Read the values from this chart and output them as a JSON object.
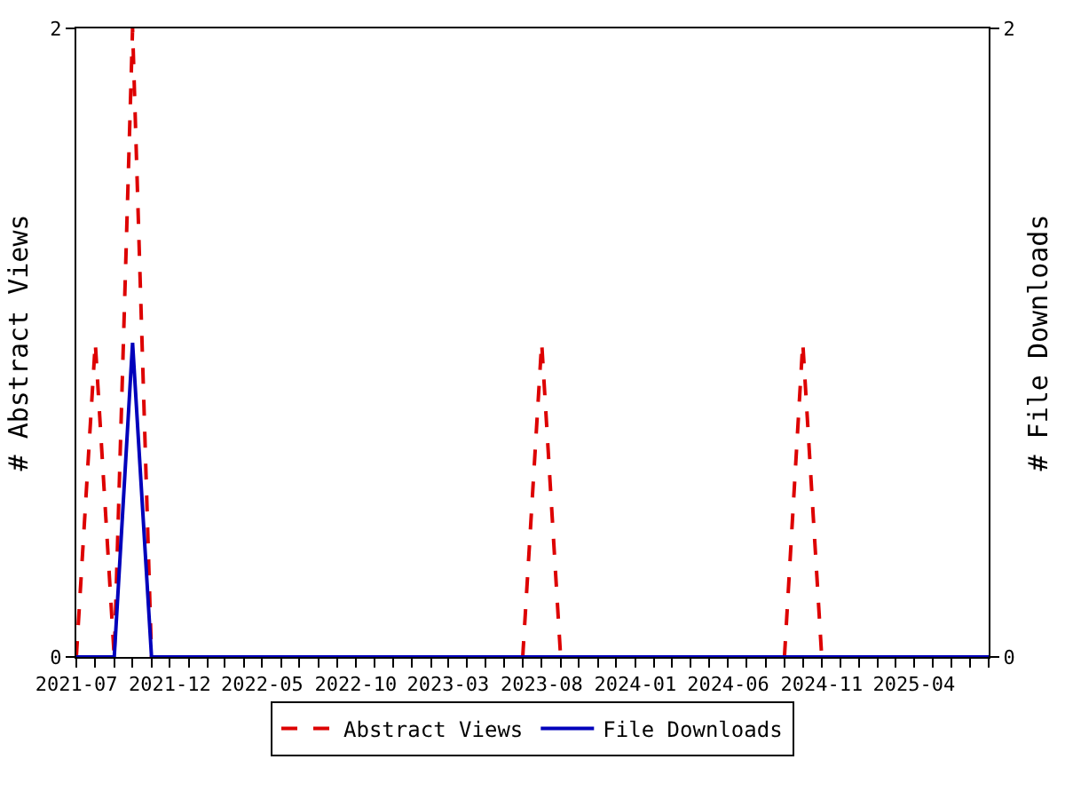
{
  "chart_data": {
    "type": "line",
    "x": [
      "2021-07",
      "2021-08",
      "2021-09",
      "2021-10",
      "2021-11",
      "2021-12",
      "2022-01",
      "2022-02",
      "2022-03",
      "2022-04",
      "2022-05",
      "2022-06",
      "2022-07",
      "2022-08",
      "2022-09",
      "2022-10",
      "2022-11",
      "2022-12",
      "2023-01",
      "2023-02",
      "2023-03",
      "2023-04",
      "2023-05",
      "2023-06",
      "2023-07",
      "2023-08",
      "2023-09",
      "2023-10",
      "2023-11",
      "2023-12",
      "2024-01",
      "2024-02",
      "2024-03",
      "2024-04",
      "2024-05",
      "2024-06",
      "2024-07",
      "2024-08",
      "2024-09",
      "2024-10",
      "2024-11",
      "2024-12",
      "2025-01",
      "2025-02",
      "2025-03",
      "2025-04",
      "2025-05",
      "2025-06",
      "2025-07",
      "2025-08"
    ],
    "series": [
      {
        "name": "Abstract Views",
        "color": "#dd0000",
        "line_style": "dashed",
        "values": [
          0,
          1,
          0,
          2,
          0,
          null,
          null,
          null,
          null,
          null,
          null,
          null,
          null,
          null,
          null,
          null,
          null,
          null,
          null,
          null,
          null,
          null,
          null,
          null,
          0,
          1,
          0,
          null,
          null,
          null,
          null,
          null,
          null,
          null,
          null,
          null,
          null,
          null,
          0,
          1,
          0,
          null,
          null,
          null,
          null,
          null,
          null,
          null,
          null,
          null
        ]
      },
      {
        "name": "File Downloads",
        "color": "#0000bb",
        "line_style": "solid",
        "axis": "y2",
        "values": [
          0,
          0,
          0,
          1,
          0,
          0,
          0,
          0,
          0,
          0,
          0,
          0,
          0,
          0,
          0,
          0,
          0,
          0,
          0,
          0,
          0,
          0,
          0,
          0,
          0,
          0,
          0,
          0,
          0,
          0,
          0,
          0,
          0,
          0,
          0,
          0,
          0,
          0,
          0,
          0,
          0,
          0,
          0,
          0,
          0,
          0,
          0,
          0,
          0,
          0
        ]
      }
    ],
    "ylabel": "# Abstract Views",
    "y2label": "# File Downloads",
    "xlim": [
      "2021-07",
      "2025-08"
    ],
    "xticks": [
      {
        "value": "2021-07",
        "label": "2021-07"
      },
      {
        "value": "2021-08",
        "label": null
      },
      {
        "value": "2021-09",
        "label": null
      },
      {
        "value": "2021-10",
        "label": null
      },
      {
        "value": "2021-11",
        "label": null
      },
      {
        "value": "2021-12",
        "label": "2021-12"
      },
      {
        "value": "2022-01",
        "label": null
      },
      {
        "value": "2022-02",
        "label": null
      },
      {
        "value": "2022-03",
        "label": null
      },
      {
        "value": "2022-04",
        "label": null
      },
      {
        "value": "2022-05",
        "label": "2022-05"
      },
      {
        "value": "2022-06",
        "label": null
      },
      {
        "value": "2022-07",
        "label": null
      },
      {
        "value": "2022-08",
        "label": null
      },
      {
        "value": "2022-09",
        "label": null
      },
      {
        "value": "2022-10",
        "label": "2022-10"
      },
      {
        "value": "2022-11",
        "label": null
      },
      {
        "value": "2022-12",
        "label": null
      },
      {
        "value": "2023-01",
        "label": null
      },
      {
        "value": "2023-02",
        "label": null
      },
      {
        "value": "2023-03",
        "label": "2023-03"
      },
      {
        "value": "2023-04",
        "label": null
      },
      {
        "value": "2023-05",
        "label": null
      },
      {
        "value": "2023-06",
        "label": null
      },
      {
        "value": "2023-07",
        "label": null
      },
      {
        "value": "2023-08",
        "label": "2023-08"
      },
      {
        "value": "2023-09",
        "label": null
      },
      {
        "value": "2023-10",
        "label": null
      },
      {
        "value": "2023-11",
        "label": null
      },
      {
        "value": "2023-12",
        "label": null
      },
      {
        "value": "2024-01",
        "label": "2024-01"
      },
      {
        "value": "2024-02",
        "label": null
      },
      {
        "value": "2024-03",
        "label": null
      },
      {
        "value": "2024-04",
        "label": null
      },
      {
        "value": "2024-05",
        "label": null
      },
      {
        "value": "2024-06",
        "label": "2024-06"
      },
      {
        "value": "2024-07",
        "label": null
      },
      {
        "value": "2024-08",
        "label": null
      },
      {
        "value": "2024-09",
        "label": null
      },
      {
        "value": "2024-10",
        "label": null
      },
      {
        "value": "2024-11",
        "label": "2024-11"
      },
      {
        "value": "2024-12",
        "label": null
      },
      {
        "value": "2025-01",
        "label": null
      },
      {
        "value": "2025-02",
        "label": null
      },
      {
        "value": "2025-03",
        "label": null
      },
      {
        "value": "2025-04",
        "label": "2025-04"
      },
      {
        "value": "2025-05",
        "label": null
      },
      {
        "value": "2025-06",
        "label": null
      },
      {
        "value": "2025-07",
        "label": null
      },
      {
        "value": "2025-08",
        "label": null
      }
    ],
    "ylim": [
      0,
      2
    ],
    "yticks": [
      0,
      2
    ],
    "y2lim": [
      0,
      2
    ],
    "y2ticks": [
      0,
      2
    ],
    "legend": "bottom",
    "marker": "none"
  }
}
